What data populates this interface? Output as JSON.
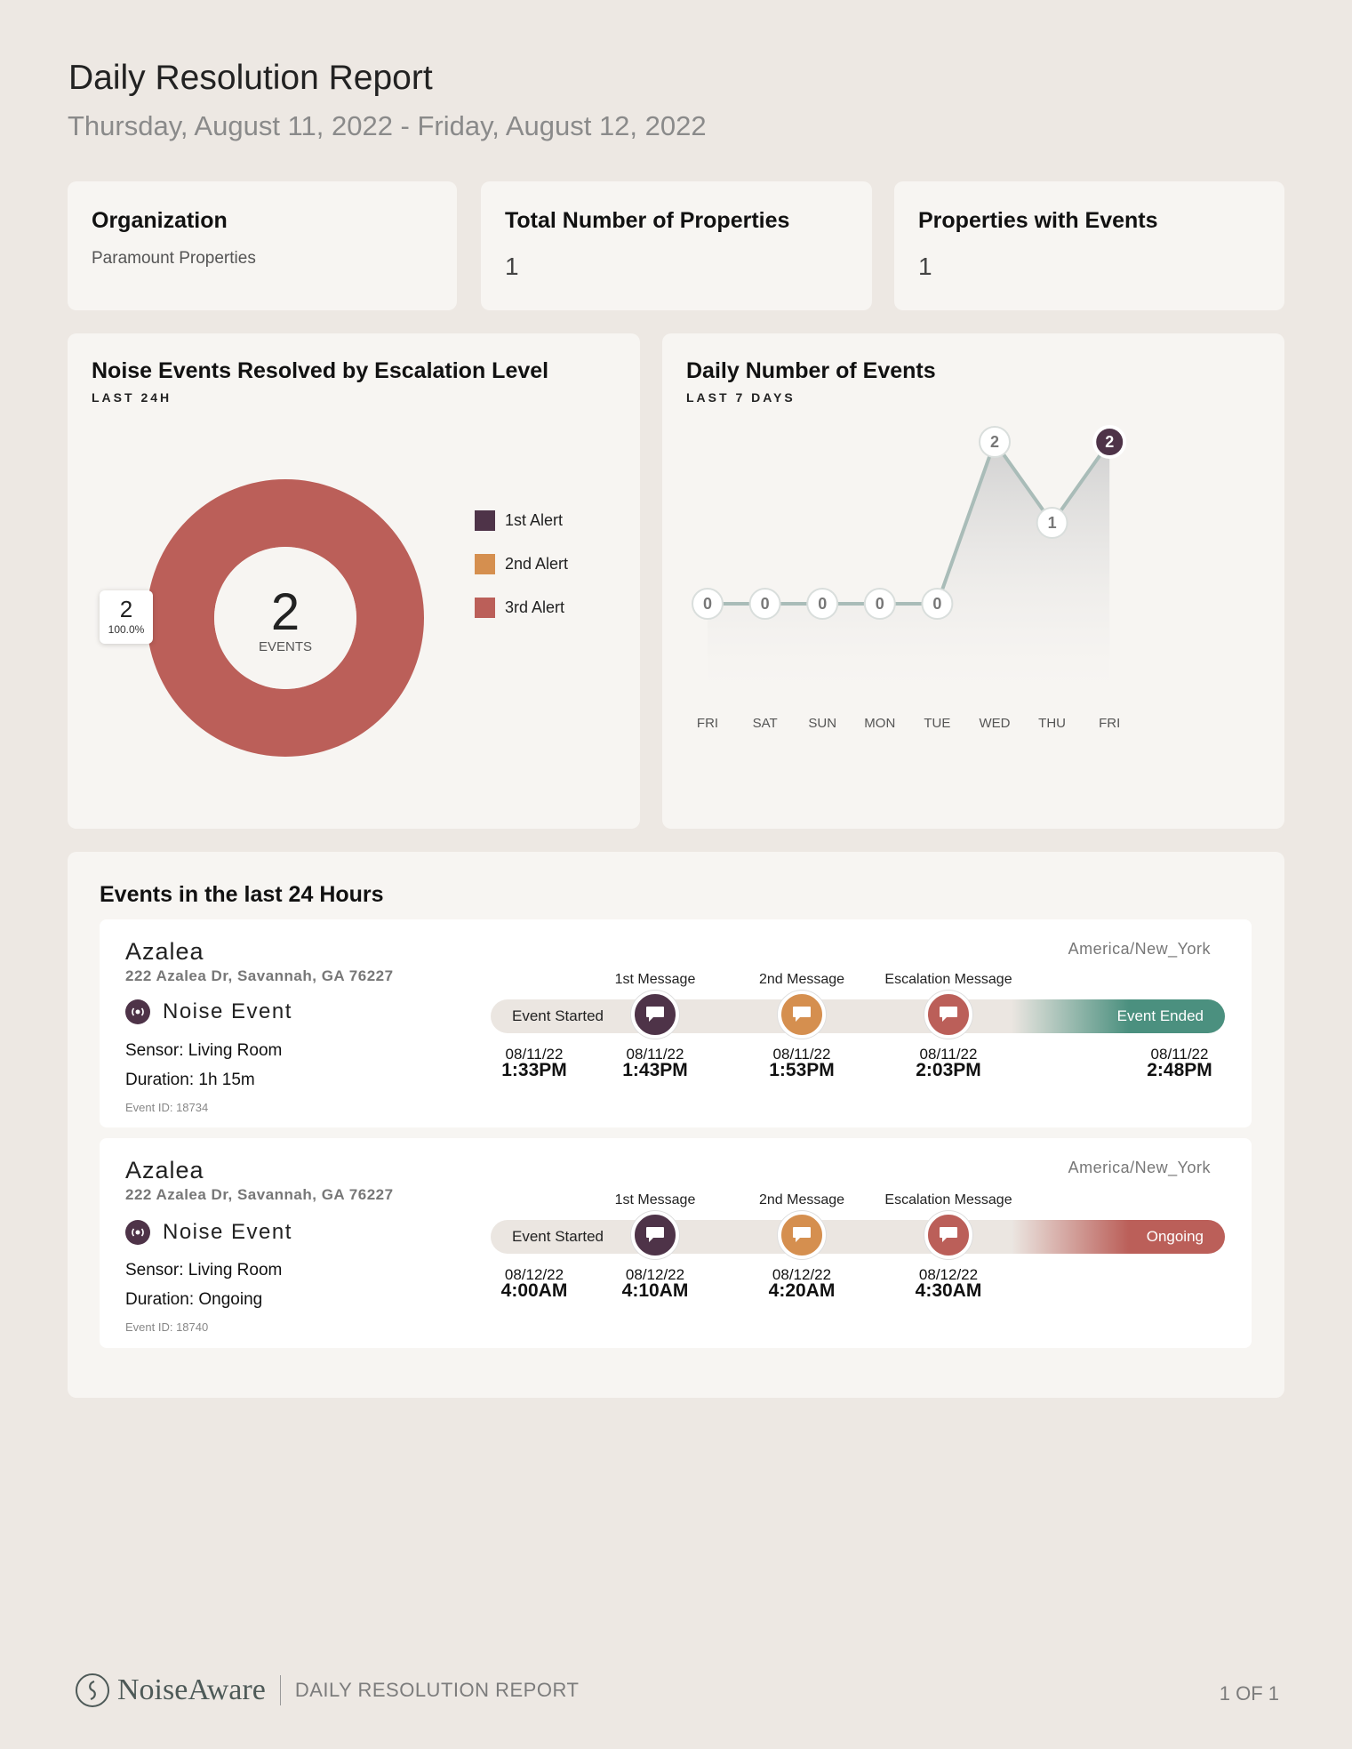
{
  "header": {
    "title": "Daily Resolution Report",
    "date_range": "Thursday, August 11, 2022 - Friday, August 12, 2022"
  },
  "stats": {
    "organization_label": "Organization",
    "organization_value": "Paramount Properties",
    "total_label": "Total Number of Properties",
    "total_value": "1",
    "with_events_label": "Properties with Events",
    "with_events_value": "1"
  },
  "donut_panel": {
    "title": "Noise Events Resolved by Escalation Level",
    "subtitle": "LAST 24H",
    "center_value": "2",
    "center_label": "EVENTS",
    "slice_label_value": "2",
    "slice_label_pct": "100.0%",
    "legend": [
      {
        "label": "1st Alert",
        "color": "#4e3348"
      },
      {
        "label": "2nd Alert",
        "color": "#d58f4f"
      },
      {
        "label": "3rd Alert",
        "color": "#bb5f59"
      }
    ]
  },
  "line_panel": {
    "title": "Daily Number of Events",
    "subtitle": "LAST 7 DAYS"
  },
  "chart_data": [
    {
      "type": "pie",
      "title": "Noise Events Resolved by Escalation Level",
      "categories": [
        "1st Alert",
        "2nd Alert",
        "3rd Alert"
      ],
      "values": [
        0,
        0,
        2
      ],
      "colors": [
        "#4e3348",
        "#d58f4f",
        "#bb5f59"
      ]
    },
    {
      "type": "area",
      "title": "Daily Number of Events",
      "categories": [
        "FRI",
        "SAT",
        "SUN",
        "MON",
        "TUE",
        "WED",
        "THU",
        "FRI"
      ],
      "values": [
        0,
        0,
        0,
        0,
        0,
        2,
        1,
        2
      ],
      "ylim": [
        0,
        2
      ],
      "highlight_last": true
    }
  ],
  "events_panel": {
    "title": "Events in the last 24 Hours",
    "events": [
      {
        "property": "Azalea",
        "address": "222 Azalea Dr, Savannah, GA 76227",
        "timezone": "America/New_York",
        "type": "Noise Event",
        "sensor": "Sensor: Living Room",
        "duration": "Duration: 1h 15m",
        "event_id": "Event ID: 18734",
        "start_label": "Event Started",
        "end_label": "Event Ended",
        "end_color": "#4b907f",
        "messages": [
          "1st Message",
          "2nd Message",
          "Escalation Message"
        ],
        "times": [
          {
            "date": "08/11/22",
            "time": "1:33PM"
          },
          {
            "date": "08/11/22",
            "time": "1:43PM"
          },
          {
            "date": "08/11/22",
            "time": "1:53PM"
          },
          {
            "date": "08/11/22",
            "time": "2:03PM"
          },
          {
            "date": "08/11/22",
            "time": "2:48PM"
          }
        ]
      },
      {
        "property": "Azalea",
        "address": "222 Azalea Dr, Savannah, GA 76227",
        "timezone": "America/New_York",
        "type": "Noise Event",
        "sensor": "Sensor: Living Room",
        "duration": "Duration: Ongoing",
        "event_id": "Event ID: 18740",
        "start_label": "Event Started",
        "end_label": "Ongoing",
        "end_color": "#bb5f59",
        "messages": [
          "1st Message",
          "2nd Message",
          "Escalation Message"
        ],
        "times": [
          {
            "date": "08/12/22",
            "time": "4:00AM"
          },
          {
            "date": "08/12/22",
            "time": "4:10AM"
          },
          {
            "date": "08/12/22",
            "time": "4:20AM"
          },
          {
            "date": "08/12/22",
            "time": "4:30AM"
          }
        ]
      }
    ]
  },
  "footer": {
    "brand": "NoiseAware",
    "report": "DAILY RESOLUTION REPORT",
    "page": "1 OF 1"
  }
}
